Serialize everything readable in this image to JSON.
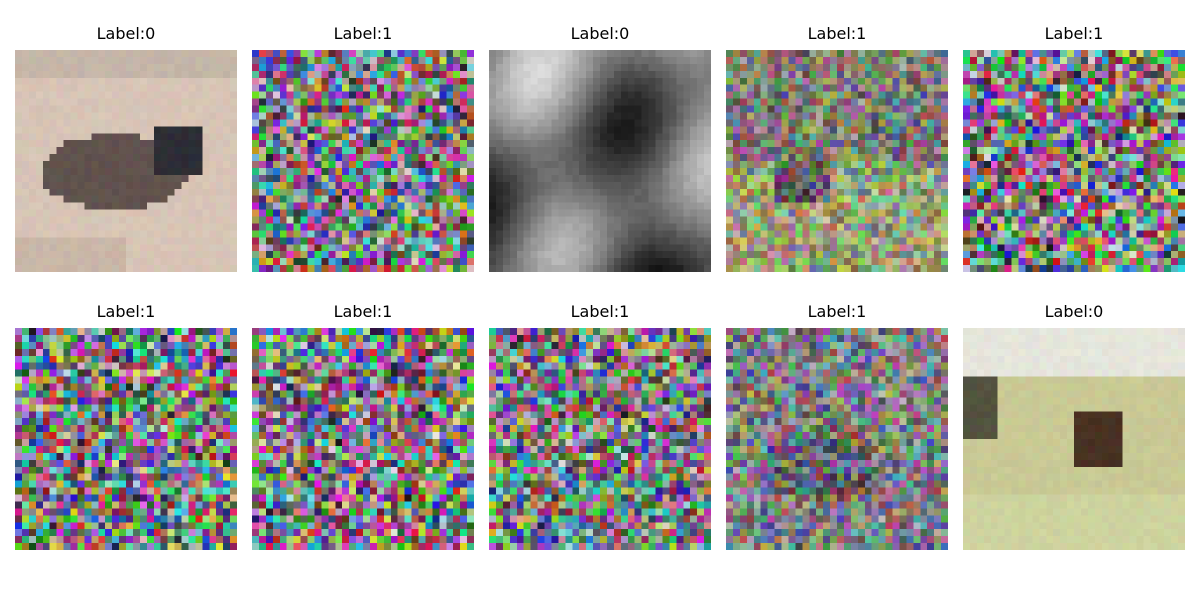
{
  "figure": {
    "panels": [
      {
        "title": "Label:0",
        "description": "photo of a small dark animal on a light beige background, low-resolution",
        "noise": 0.05,
        "palette": "sepia",
        "scene": "dog-beige"
      },
      {
        "title": "Label:1",
        "description": "heavily noised multicolor image",
        "noise": 0.9,
        "palette": "color",
        "scene": "none"
      },
      {
        "title": "Label:0",
        "description": "grayscale abstract blurred shapes",
        "noise": 0.05,
        "palette": "gray",
        "scene": "gray-shapes"
      },
      {
        "title": "Label:1",
        "description": "noised image of an animal on green grass",
        "noise": 0.55,
        "palette": "green",
        "scene": "animal-grass"
      },
      {
        "title": "Label:1",
        "description": "heavily noised multicolor image",
        "noise": 0.95,
        "palette": "color",
        "scene": "none"
      },
      {
        "title": "Label:1",
        "description": "heavily noised multicolor image",
        "noise": 0.95,
        "palette": "color",
        "scene": "none"
      },
      {
        "title": "Label:1",
        "description": "heavily noised multicolor image",
        "noise": 0.95,
        "palette": "color",
        "scene": "none"
      },
      {
        "title": "Label:1",
        "description": "heavily noised multicolor image",
        "noise": 0.9,
        "palette": "color",
        "scene": "none"
      },
      {
        "title": "Label:1",
        "description": "noised image of a dark animal on gray-blue background",
        "noise": 0.6,
        "palette": "blue",
        "scene": "animal-dark"
      },
      {
        "title": "Label:0",
        "description": "photo of a dark deer in yellow-green vegetation",
        "noise": 0.05,
        "palette": "yellow",
        "scene": "deer-yellow"
      }
    ]
  }
}
